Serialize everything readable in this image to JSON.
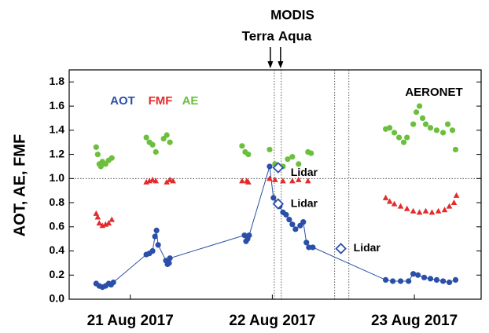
{
  "chart_data": {
    "type": "scatter",
    "ylabel": "AOT, AE, FMF",
    "annotations": {
      "modis": "MODIS",
      "terra": {
        "text": "Terra",
        "x": 22.486
      },
      "aqua": {
        "text": "Aqua",
        "x": 22.558
      },
      "network": "AERONET"
    },
    "xlim": [
      21.07,
      23.97
    ],
    "ylim": [
      0,
      1.9
    ],
    "xticks": [
      {
        "value": 21.5,
        "label": "21 Aug 2017"
      },
      {
        "value": 22.5,
        "label": "22 Aug 2017"
      },
      {
        "value": 23.5,
        "label": "23 Aug 2017"
      }
    ],
    "yticks": [
      {
        "value": 0,
        "label": "0.0"
      },
      0.2,
      0.4,
      0.6,
      0.8,
      {
        "value": 1,
        "label": "1.0"
      },
      1.2,
      1.4,
      1.6,
      1.8
    ],
    "hline": 1,
    "vlines": [
      22.514,
      22.563,
      22.939,
      23.039
    ],
    "series": [
      {
        "name": "AOT",
        "color": "#2a4fa8",
        "marker": "circle",
        "line": true,
        "x": [
          21.26,
          21.282,
          21.304,
          21.326,
          21.348,
          21.365,
          21.381,
          21.613,
          21.635,
          21.657,
          21.674,
          21.685,
          21.696,
          21.751,
          21.762,
          21.773,
          21.779,
          22.304,
          22.315,
          22.326,
          22.337,
          22.481,
          22.508,
          22.53,
          22.552,
          22.575,
          22.597,
          22.619,
          22.641,
          22.663,
          22.696,
          22.718,
          22.74,
          22.757,
          22.785,
          23.298,
          23.348,
          23.403,
          23.459,
          23.492,
          23.525,
          23.569,
          23.613,
          23.657,
          23.702,
          23.746,
          23.79
        ],
        "values": [
          0.13,
          0.11,
          0.1,
          0.11,
          0.13,
          0.12,
          0.14,
          0.37,
          0.38,
          0.4,
          0.52,
          0.57,
          0.45,
          0.32,
          0.29,
          0.3,
          0.34,
          0.53,
          0.48,
          0.5,
          0.53,
          1.1,
          0.84,
          0.8,
          0.77,
          0.72,
          0.7,
          0.66,
          0.62,
          0.58,
          0.61,
          0.64,
          0.47,
          0.43,
          0.43,
          0.16,
          0.15,
          0.15,
          0.15,
          0.21,
          0.2,
          0.18,
          0.17,
          0.16,
          0.15,
          0.14,
          0.16
        ]
      },
      {
        "name": "FMF",
        "color": "#e32b2b",
        "marker": "triangle",
        "x": [
          21.26,
          21.271,
          21.282,
          21.304,
          21.326,
          21.348,
          21.37,
          21.613,
          21.635,
          21.657,
          21.68,
          21.757,
          21.779,
          21.801,
          22.287,
          22.32,
          22.331,
          22.481,
          22.519,
          22.575,
          22.641,
          22.685,
          22.751,
          23.298,
          23.326,
          23.359,
          23.403,
          23.448,
          23.492,
          23.536,
          23.58,
          23.624,
          23.669,
          23.713,
          23.746,
          23.779,
          23.796
        ],
        "values": [
          0.71,
          0.68,
          0.63,
          0.61,
          0.62,
          0.63,
          0.66,
          0.97,
          0.98,
          0.99,
          0.98,
          0.97,
          0.99,
          0.98,
          0.98,
          0.98,
          0.97,
          1.0,
          0.99,
          0.98,
          0.98,
          0.99,
          0.98,
          0.84,
          0.81,
          0.79,
          0.77,
          0.75,
          0.73,
          0.72,
          0.73,
          0.72,
          0.73,
          0.74,
          0.77,
          0.8,
          0.86
        ]
      },
      {
        "name": "AE",
        "color": "#6cbf3c",
        "marker": "circle",
        "x": [
          21.26,
          21.271,
          21.282,
          21.293,
          21.304,
          21.326,
          21.348,
          21.37,
          21.613,
          21.635,
          21.657,
          21.68,
          21.735,
          21.757,
          21.779,
          22.287,
          22.309,
          22.331,
          22.481,
          22.519,
          22.575,
          22.608,
          22.641,
          22.685,
          22.751,
          22.773,
          23.298,
          23.326,
          23.359,
          23.392,
          23.425,
          23.448,
          23.492,
          23.514,
          23.536,
          23.558,
          23.58,
          23.613,
          23.657,
          23.702,
          23.735,
          23.768,
          23.79
        ],
        "values": [
          1.26,
          1.2,
          1.12,
          1.1,
          1.14,
          1.12,
          1.15,
          1.17,
          1.34,
          1.3,
          1.28,
          1.22,
          1.33,
          1.36,
          1.3,
          1.27,
          1.22,
          1.2,
          1.24,
          1.12,
          1.1,
          1.16,
          1.18,
          1.12,
          1.22,
          1.21,
          1.41,
          1.42,
          1.38,
          1.34,
          1.3,
          1.34,
          1.45,
          1.55,
          1.6,
          1.5,
          1.45,
          1.42,
          1.4,
          1.38,
          1.45,
          1.4,
          1.24
        ]
      },
      {
        "name": "Lidar",
        "color": "#2a4fa8",
        "marker": "diamond",
        "x": [
          22.541,
          22.541,
          22.983
        ],
        "values": [
          1.09,
          0.79,
          0.42
        ],
        "point_labels": [
          "Lidar",
          "Lidar",
          "Lidar"
        ]
      }
    ]
  }
}
